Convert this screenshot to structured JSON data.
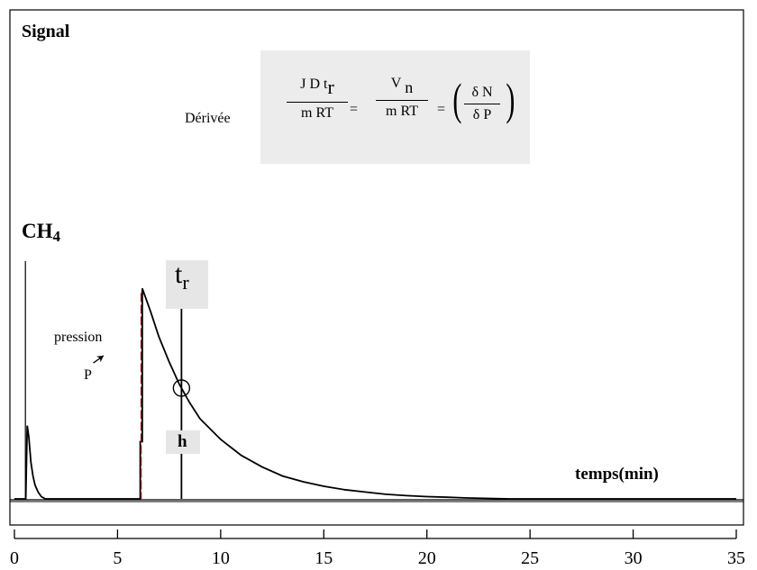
{
  "labels": {
    "signal": "Signal",
    "ch4": "CH",
    "ch4_sub": "4",
    "pression": "pression",
    "p": "P",
    "tr_main": "t",
    "tr_sub": "r",
    "h": "h",
    "temps": "temps(min)",
    "derivee": "Dérivée"
  },
  "formula": {
    "f1_num": "J D  t",
    "f1_num_sub": "r",
    "f1_den": "m RT",
    "eq1": "=",
    "f2_num": "V",
    "f2_num_sub": "n",
    "f2_den": "m RT",
    "eq2": "=",
    "f3_num": "δ N",
    "f3_den": "δ P"
  },
  "chart_data": {
    "type": "line",
    "xlabel": "temps(min)",
    "ylabel": "Signal",
    "xlim": [
      0,
      35
    ],
    "xticks": [
      0,
      5,
      10,
      15,
      20,
      25,
      30,
      35
    ],
    "series": [
      {
        "points": [
          [
            0.0,
            0
          ],
          [
            0.55,
            0
          ],
          [
            0.62,
            0.32
          ],
          [
            0.7,
            0.27
          ],
          [
            0.8,
            0.16
          ],
          [
            0.9,
            0.1
          ],
          [
            1.0,
            0.06
          ],
          [
            1.15,
            0.03
          ],
          [
            1.3,
            0.01
          ],
          [
            1.5,
            0.0
          ],
          [
            6.1,
            0
          ],
          [
            6.1,
            0.25
          ],
          [
            6.2,
            0.25
          ],
          [
            6.2,
            0.92
          ],
          [
            6.6,
            0.82
          ],
          [
            7.0,
            0.71
          ],
          [
            7.5,
            0.6
          ],
          [
            8.0,
            0.5
          ],
          [
            8.5,
            0.42
          ],
          [
            9.0,
            0.35
          ],
          [
            10.0,
            0.26
          ],
          [
            11.0,
            0.19
          ],
          [
            12.0,
            0.14
          ],
          [
            13.0,
            0.1
          ],
          [
            14.0,
            0.075
          ],
          [
            15.0,
            0.055
          ],
          [
            16.0,
            0.04
          ],
          [
            17.0,
            0.03
          ],
          [
            18.0,
            0.02
          ],
          [
            19.0,
            0.014
          ],
          [
            20.0,
            0.01
          ],
          [
            21.0,
            0.007
          ],
          [
            22.0,
            0.004
          ],
          [
            23.0,
            0.002
          ],
          [
            24.0,
            0.0
          ],
          [
            35.0,
            0.0
          ]
        ]
      }
    ],
    "markers": {
      "ch4_peak_time": 0.62,
      "pressure_step_time": 6.1,
      "tr_time": 8.1,
      "tr_signal": 0.5
    }
  }
}
